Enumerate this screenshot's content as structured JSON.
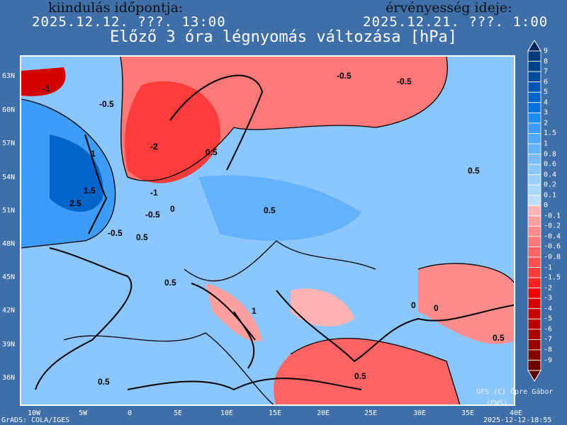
{
  "header": {
    "init_label": "kiindulás időpontja:",
    "init_value": "2025.12.12. ???. 13:00",
    "valid_label": "érvényesség ideje:",
    "valid_value": "2025.12.21. ???. 1:00",
    "title": "Előző 3 óra légnyomás változása [hPa]"
  },
  "lat_labels": [
    "63N",
    "60N",
    "57N",
    "54N",
    "51N",
    "48N",
    "45N",
    "42N",
    "39N",
    "36N"
  ],
  "lon_labels": [
    "10W",
    "5W",
    "0",
    "5E",
    "10E",
    "15E",
    "20E",
    "25E",
    "30E",
    "35E",
    "40E"
  ],
  "colorbar": {
    "labels": [
      "9",
      "8",
      "7",
      "6",
      "5",
      "4",
      "3",
      "2",
      "1.5",
      "1",
      "0.8",
      "0.6",
      "0.4",
      "0.2",
      "0.1",
      "0",
      "-0.1",
      "-0.2",
      "-0.4",
      "-0.6",
      "-0.8",
      "-1",
      "-1.5",
      "-2",
      "-3",
      "-4",
      "-5",
      "-6",
      "-7",
      "-8",
      "-9"
    ],
    "colors": [
      "#00285a",
      "#003a7a",
      "#00438a",
      "#004c9c",
      "#0056b0",
      "#0064c8",
      "#0072e0",
      "#1e8cf5",
      "#3c9cf8",
      "#50a8fa",
      "#64b2fc",
      "#78bcfc",
      "#8cc6fe",
      "#9ccefe",
      "#aad6ff",
      "#bcdfff",
      "#ffb4b4",
      "#ffa0a0",
      "#ff8c8c",
      "#ff7878",
      "#ff6464",
      "#ff5050",
      "#ff3c3c",
      "#ff2020",
      "#f00000",
      "#d40000",
      "#c80000",
      "#b80000",
      "#a80000",
      "#960000",
      "#820000",
      "#6e0000",
      "#5a0000"
    ]
  },
  "contour_labels": [
    "-1",
    "-0.5",
    "-2",
    "-1",
    "-0.5",
    "0",
    "0.5",
    "-0.5",
    "1",
    "1.5",
    "2.5",
    "0.5",
    "0.5",
    "0.5",
    "-0.5",
    "1",
    "0.5",
    "0",
    "0.5",
    "0.5",
    "-0.5",
    "0.5",
    "0"
  ],
  "footer": {
    "credit": "GFS (C) Ópre Gábor",
    "credit2": "(EWS)",
    "grads": "GrADS: COLA/IGES",
    "timestamp": "2025-12-12-18:55"
  }
}
